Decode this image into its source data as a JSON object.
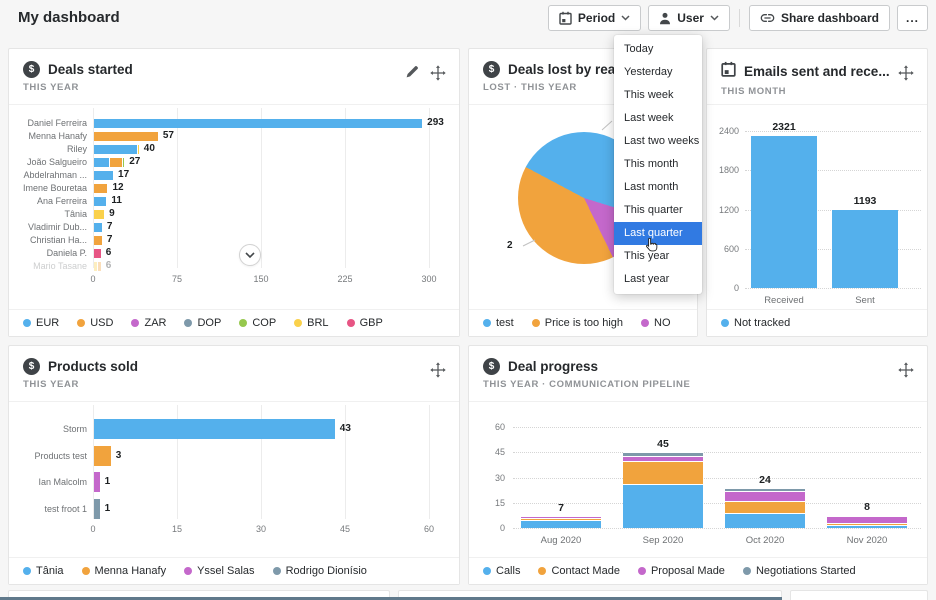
{
  "page": {
    "title": "My dashboard"
  },
  "toolbar": {
    "period": "Period",
    "user": "User",
    "share": "Share dashboard",
    "more": "..."
  },
  "period_menu": {
    "items": [
      "Today",
      "Yesterday",
      "This week",
      "Last week",
      "Last two weeks",
      "This month",
      "Last month",
      "This quarter",
      "Last quarter",
      "This year",
      "Last year"
    ],
    "selected": "Last quarter",
    "selected_index": 8,
    "selected_color": "#317ae2"
  },
  "icons": {
    "deal": "$"
  },
  "palette": {
    "blue": "#54b0ec",
    "orange": "#f1a33d",
    "yellow": "#fad14b",
    "purple": "#c468cb",
    "pink": "#e75584",
    "green": "#96c84e",
    "grayblue": "#7e99aa"
  },
  "cards": [
    {
      "title": "Deals started",
      "subtitle": "THIS YEAR"
    },
    {
      "title": "Deals lost by reaso...",
      "subtitle": "LOST · THIS YEAR"
    },
    {
      "title": "Emails sent and rece...",
      "subtitle": "THIS MONTH"
    },
    {
      "title": "Products sold",
      "subtitle": "THIS YEAR"
    },
    {
      "title": "Deal progress",
      "subtitle": "THIS YEAR · COMMUNICATION PIPELINE"
    }
  ],
  "chart_data": [
    {
      "id": "deals_started",
      "type": "bar",
      "orientation": "horizontal",
      "stacked": true,
      "title": "Deals started",
      "period": "THIS YEAR",
      "categories": [
        "Daniel Ferreira",
        "Menna Hanafy",
        "Riley",
        "João Salgueiro",
        "Abdelrahman ...",
        "Imene Bouretaa",
        "Ana Ferreira",
        "Tânia",
        "Vladimir Dub...",
        "Christian Ha...",
        "Daniela P.",
        "Mario Tasane"
      ],
      "values": [
        293,
        57,
        40,
        27,
        17,
        12,
        11,
        9,
        7,
        7,
        6,
        6
      ],
      "segments": [
        [
          {
            "c": "blue",
            "v": 293
          }
        ],
        [
          {
            "c": "orange",
            "v": 57
          }
        ],
        [
          {
            "c": "blue",
            "v": 38
          },
          {
            "c": "yellow",
            "v": 2
          }
        ],
        [
          {
            "c": "blue",
            "v": 13
          },
          {
            "c": "orange",
            "v": 12
          },
          {
            "c": "green",
            "v": 2
          }
        ],
        [
          {
            "c": "blue",
            "v": 17
          }
        ],
        [
          {
            "c": "orange",
            "v": 12
          }
        ],
        [
          {
            "c": "blue",
            "v": 11
          }
        ],
        [
          {
            "c": "yellow",
            "v": 9
          }
        ],
        [
          {
            "c": "blue",
            "v": 7
          }
        ],
        [
          {
            "c": "orange",
            "v": 7
          }
        ],
        [
          {
            "c": "pink",
            "v": 6
          }
        ],
        [
          {
            "c": "yellow",
            "v": 3
          },
          {
            "c": "orange",
            "v": 3
          }
        ]
      ],
      "faded_last_row": true,
      "xticks": [
        0,
        75,
        150,
        225,
        300
      ],
      "xlim": [
        0,
        300
      ],
      "legend": [
        {
          "label": "EUR",
          "color": "blue"
        },
        {
          "label": "USD",
          "color": "orange"
        },
        {
          "label": "ZAR",
          "color": "purple"
        },
        {
          "label": "DOP",
          "color": "grayblue"
        },
        {
          "label": "COP",
          "color": "green"
        },
        {
          "label": "BRL",
          "color": "yellow"
        },
        {
          "label": "GBP",
          "color": "pink"
        }
      ]
    },
    {
      "id": "deals_lost",
      "type": "pie",
      "title": "Deals lost by reason",
      "period": "LOST · THIS YEAR",
      "slices": [
        {
          "label": "test",
          "color": "blue",
          "pct": 47
        },
        {
          "label": "Price is too high",
          "color": "orange",
          "pct": 40,
          "value_label": "2"
        },
        {
          "label": "NO",
          "color": "purple",
          "pct": 13
        }
      ],
      "draw_order": [
        0,
        2,
        1
      ],
      "start_angle": -62,
      "callout": "2",
      "legend": [
        {
          "label": "test",
          "color": "blue"
        },
        {
          "label": "Price is too high",
          "color": "orange"
        },
        {
          "label": "NO",
          "color": "purple"
        }
      ]
    },
    {
      "id": "emails",
      "type": "bar",
      "title": "Emails sent and received",
      "period": "THIS MONTH",
      "categories": [
        "Received",
        "Sent"
      ],
      "values": [
        2321,
        1193
      ],
      "yticks": [
        0,
        600,
        1200,
        1800,
        2400
      ],
      "ylim": [
        0,
        2400
      ],
      "bar_color": "blue",
      "legend": [
        {
          "label": "Not tracked",
          "color": "blue"
        }
      ]
    },
    {
      "id": "products_sold",
      "type": "bar",
      "orientation": "horizontal",
      "title": "Products sold",
      "period": "THIS YEAR",
      "categories": [
        "Storm",
        "Products test",
        "Ian Malcolm",
        "test froot 1"
      ],
      "values": [
        43,
        3,
        1,
        1
      ],
      "segments": [
        [
          {
            "c": "blue",
            "v": 43
          }
        ],
        [
          {
            "c": "orange",
            "v": 3
          }
        ],
        [
          {
            "c": "purple",
            "v": 1
          }
        ],
        [
          {
            "c": "grayblue",
            "v": 1
          }
        ]
      ],
      "xticks": [
        0,
        15,
        30,
        45,
        60
      ],
      "xlim": [
        0,
        60
      ],
      "legend": [
        {
          "label": "Tânia",
          "color": "blue"
        },
        {
          "label": "Menna Hanafy",
          "color": "orange"
        },
        {
          "label": "Yssel Salas",
          "color": "purple"
        },
        {
          "label": "Rodrigo Dionísio",
          "color": "grayblue"
        }
      ]
    },
    {
      "id": "deal_progress",
      "type": "stacked-bar",
      "title": "Deal progress",
      "period": "THIS YEAR · COMMUNICATION PIPELINE",
      "categories": [
        "Aug 2020",
        "Sep 2020",
        "Oct 2020",
        "Nov 2020"
      ],
      "totals": [
        7,
        45,
        24,
        8
      ],
      "series": [
        {
          "name": "Calls",
          "color": "blue",
          "values": [
            5,
            26,
            9,
            2
          ]
        },
        {
          "name": "Contact Made",
          "color": "orange",
          "values": [
            1,
            14,
            7,
            1
          ]
        },
        {
          "name": "Proposal Made",
          "color": "purple",
          "values": [
            1,
            3,
            6,
            4
          ]
        },
        {
          "name": "Negotiations Started",
          "color": "grayblue",
          "values": [
            0,
            2,
            2,
            1
          ]
        }
      ],
      "yticks": [
        0,
        15,
        30,
        45,
        60
      ],
      "ylim": [
        0,
        60
      ],
      "legend": [
        {
          "label": "Calls",
          "color": "blue"
        },
        {
          "label": "Contact Made",
          "color": "orange"
        },
        {
          "label": "Proposal Made",
          "color": "purple"
        },
        {
          "label": "Negotiations Started",
          "color": "grayblue"
        }
      ]
    }
  ]
}
